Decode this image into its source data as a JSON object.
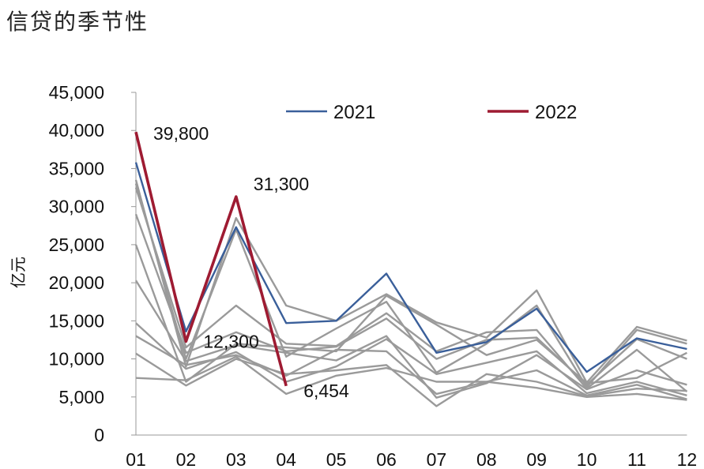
{
  "chart_data": {
    "type": "line",
    "title": "信贷的季节性",
    "ylabel": "亿元",
    "xlabel": "",
    "ylim": [
      0,
      45000
    ],
    "y_ticks": [
      "0",
      "5,000",
      "10,000",
      "15,000",
      "20,000",
      "25,000",
      "30,000",
      "35,000",
      "40,000",
      "45,000"
    ],
    "categories": [
      "01",
      "02",
      "03",
      "04",
      "05",
      "06",
      "07",
      "08",
      "09",
      "10",
      "11",
      "12"
    ],
    "legend": {
      "placement": "top",
      "entries": [
        "2021",
        "2022"
      ]
    },
    "colors": {
      "gray": "#9a9a9a",
      "2021": "#3a5f9a",
      "2022": "#9e1b32"
    },
    "highlight_series": [
      {
        "name": "2021",
        "values": [
          35800,
          13600,
          27300,
          14700,
          15000,
          21200,
          10800,
          12200,
          16600,
          8300,
          12700,
          11300
        ]
      },
      {
        "name": "2022",
        "values": [
          39800,
          12300,
          31300,
          6454
        ]
      }
    ],
    "background_series": [
      {
        "values": [
          33500,
          9000,
          28500,
          17000,
          15000,
          18500,
          14800,
          12800,
          19000,
          6900,
          14200,
          12400
        ]
      },
      {
        "values": [
          33000,
          10000,
          27000,
          10300,
          14000,
          17500,
          8200,
          12000,
          17000,
          6300,
          13800,
          12000
        ]
      },
      {
        "values": [
          32500,
          11500,
          17000,
          12000,
          11700,
          16000,
          11000,
          13500,
          13800,
          6100,
          11200,
          5700
        ]
      },
      {
        "values": [
          29000,
          10800,
          13500,
          11000,
          11600,
          15300,
          10000,
          12500,
          12800,
          6600,
          12600,
          10000
        ]
      },
      {
        "values": [
          25000,
          7000,
          12000,
          11500,
          11000,
          18300,
          14500,
          10500,
          12500,
          6800,
          7500,
          10800
        ]
      },
      {
        "values": [
          20300,
          9700,
          11800,
          10800,
          9800,
          13000,
          4900,
          6800,
          10500,
          6000,
          8500,
          6600
        ]
      },
      {
        "values": [
          14700,
          8700,
          10900,
          7000,
          9000,
          12600,
          8000,
          9500,
          11000,
          5500,
          7000,
          5200
        ]
      },
      {
        "values": [
          13000,
          9200,
          10500,
          7800,
          11200,
          11000,
          5400,
          7000,
          8500,
          5200,
          6600,
          4700
        ]
      },
      {
        "values": [
          10700,
          6500,
          10000,
          8000,
          8500,
          9200,
          3800,
          8000,
          7000,
          5100,
          6100,
          5800
        ]
      },
      {
        "values": [
          7500,
          7200,
          10300,
          5400,
          7800,
          8800,
          7000,
          7000,
          6200,
          5000,
          5400,
          4600
        ]
      }
    ],
    "annotations": [
      {
        "text": "39,800",
        "category": "01",
        "value": 39800
      },
      {
        "text": "31,300",
        "category": "03",
        "value": 31300
      },
      {
        "text": "12,300",
        "category": "02",
        "value": 12300
      },
      {
        "text": "6,454",
        "category": "04",
        "value": 6454
      }
    ]
  }
}
